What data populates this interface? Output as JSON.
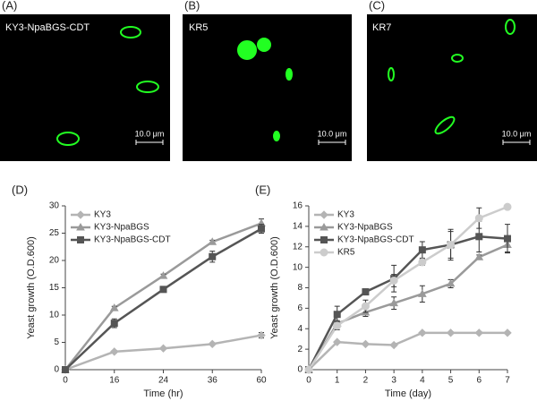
{
  "images": [
    {
      "panel": "(A)",
      "caption": "KY3-NpaBGS-CDT",
      "scale": "10.0 μm"
    },
    {
      "panel": "(B)",
      "caption": "KR5",
      "scale": "10.0 μm"
    },
    {
      "panel": "(C)",
      "caption": "KR7",
      "scale": "10.0 μm"
    }
  ],
  "chart_data": [
    {
      "type": "line",
      "title": "(D)",
      "xlabel": "Time (hr)",
      "ylabel": "Yeast growth (O.D.600)",
      "categories": [
        "0",
        "16",
        "24",
        "36",
        "60"
      ],
      "ylim": [
        0,
        30
      ],
      "yticks": [
        0,
        5,
        10,
        15,
        20,
        25,
        30
      ],
      "legend": "upper left",
      "series": [
        {
          "name": "KY3",
          "color": "#b4b4b4",
          "marker": "diamond",
          "values": [
            0,
            3.3,
            3.9,
            4.7,
            6.3
          ],
          "errors": [
            0,
            0.2,
            0.2,
            0.2,
            0.5
          ]
        },
        {
          "name": "KY3-NpaBGS",
          "color": "#9a9a9a",
          "marker": "triangle",
          "values": [
            0,
            11.3,
            17.2,
            23.4,
            26.8
          ],
          "errors": [
            0,
            0.3,
            0.3,
            0.3,
            0.8
          ]
        },
        {
          "name": "KY3-NpaBGS-CDT",
          "color": "#555555",
          "marker": "square",
          "values": [
            0,
            8.5,
            14.7,
            20.7,
            25.8
          ],
          "errors": [
            0,
            0.8,
            0.3,
            1,
            0.8
          ]
        }
      ]
    },
    {
      "type": "line",
      "title": "(E)",
      "xlabel": "Time (day)",
      "ylabel": "Yeast growth (O.D.600)",
      "x": [
        0,
        1,
        2,
        3,
        4,
        5,
        6,
        7
      ],
      "xlim": [
        0,
        7
      ],
      "xticks": [
        0,
        1,
        2,
        3,
        4,
        5,
        6,
        7
      ],
      "ylim": [
        0,
        16
      ],
      "yticks": [
        0,
        2,
        4,
        6,
        8,
        10,
        12,
        14,
        16
      ],
      "legend": "upper left",
      "series": [
        {
          "name": "KY3",
          "color": "#b4b4b4",
          "marker": "diamond",
          "values": [
            0,
            2.7,
            2.5,
            2.4,
            3.6,
            3.6,
            3.6,
            3.6
          ],
          "errors": [
            0,
            0.1,
            0.1,
            0.1,
            0.1,
            0.1,
            0.1,
            0.1
          ]
        },
        {
          "name": "KY3-NpaBGS",
          "color": "#9a9a9a",
          "marker": "triangle",
          "values": [
            0,
            4.5,
            5.6,
            6.5,
            7.4,
            8.4,
            11,
            12.2
          ],
          "errors": [
            0,
            0.3,
            0.4,
            0.6,
            0.8,
            0.4,
            0.2,
            0.7
          ]
        },
        {
          "name": "KY3-NpaBGS-CDT",
          "color": "#555555",
          "marker": "square",
          "values": [
            0,
            5.4,
            7.6,
            8.9,
            11.7,
            12.2,
            13,
            12.8
          ],
          "errors": [
            0,
            0.8,
            0.3,
            1.3,
            0.8,
            1.5,
            1.5,
            1.4
          ]
        },
        {
          "name": "KR5",
          "color": "#cccccc",
          "marker": "circle",
          "values": [
            0,
            4.3,
            6.2,
            8.7,
            10.5,
            12.2,
            14.8,
            15.9
          ],
          "errors": [
            0,
            0.4,
            0.6,
            0.6,
            0.3,
            1.3,
            1,
            0.2
          ]
        }
      ]
    }
  ]
}
